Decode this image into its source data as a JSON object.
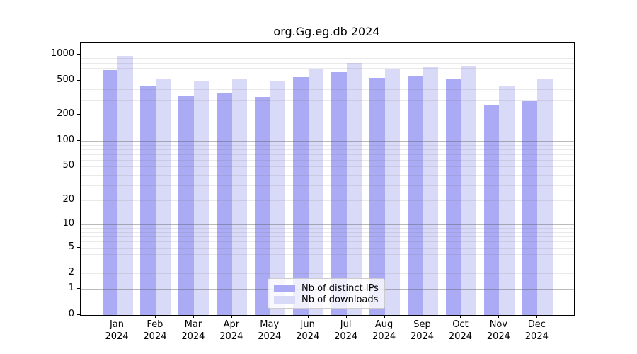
{
  "title": "org.Gg.eg.db 2024",
  "colors": {
    "distinct_ips_bar": "#aaaaf5",
    "downloads_bar": "#d9d9f8",
    "major_gridline": "#b0b0b0",
    "minor_gridline": "#e8e8e8",
    "axis": "#000000",
    "legend_border": "#cccccc"
  },
  "chart_data": {
    "type": "bar",
    "title": "org.Gg.eg.db 2024",
    "categories": [
      "Jan",
      "Feb",
      "Mar",
      "Apr",
      "May",
      "Jun",
      "Jul",
      "Aug",
      "Sep",
      "Oct",
      "Nov",
      "Dec"
    ],
    "year": "2024",
    "series": [
      {
        "name": "Nb of distinct IPs",
        "color": "#aaaaf5",
        "values": [
          655,
          425,
          335,
          360,
          320,
          550,
          620,
          535,
          560,
          525,
          260,
          290
        ]
      },
      {
        "name": "Nb of downloads",
        "color": "#d9d9f8",
        "values": [
          960,
          515,
          500,
          520,
          500,
          680,
          800,
          670,
          730,
          740,
          425,
          515
        ]
      }
    ],
    "yscale": "log1p",
    "ylabel": "",
    "xlabel": "",
    "yticks": [
      0,
      1,
      2,
      5,
      10,
      20,
      50,
      100,
      200,
      500,
      1000
    ],
    "ylim": [
      0,
      1345
    ],
    "grid": true,
    "legend_position": "lower center"
  }
}
